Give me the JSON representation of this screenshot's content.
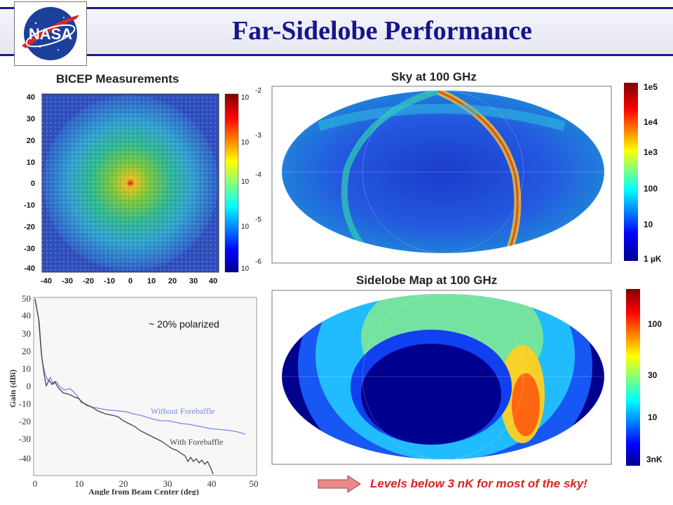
{
  "slide": {
    "title": "Far-Sidelobe Performance"
  },
  "logo": {
    "text": "NASA"
  },
  "bicep": {
    "title": "BICEP Measurements",
    "y_ticks": [
      "40",
      "30",
      "20",
      "10",
      "0",
      "-10",
      "-20",
      "-30",
      "-40"
    ],
    "x_ticks": [
      "-40",
      "-30",
      "-20",
      "-10",
      "0",
      "10",
      "20",
      "30",
      "40"
    ],
    "colorbar_ticks": [
      "-2",
      "-3",
      "-4",
      "-5",
      "-6"
    ],
    "colorbar_base": "10"
  },
  "gain_plot": {
    "ylabel": "Gain (dBi)",
    "xlabel": "Angle from Beam Center (deg)",
    "y_ticks": [
      "50",
      "40",
      "30",
      "20",
      "10",
      "0",
      "-10",
      "-20",
      "-30",
      "-40"
    ],
    "x_ticks": [
      "0",
      "10",
      "20",
      "30",
      "40",
      "50"
    ],
    "annotation": "~ 20% polarized",
    "label_without": "Without Forebaffle",
    "label_with": "With Forebaffle",
    "color_without": "#7b86e6",
    "color_with": "#444444"
  },
  "sky_map": {
    "title": "Sky at 100 GHz",
    "colorbar_ticks": [
      "1e5",
      "1e4",
      "1e3",
      "100",
      "10",
      "1 µK"
    ]
  },
  "sidelobe_map": {
    "title": "Sidelobe Map at 100 GHz",
    "colorbar_ticks": [
      "100",
      "30",
      "10",
      "3nK"
    ]
  },
  "footer": {
    "message": "Levels below 3 nK for most of the sky!",
    "arrow_color": "#e88a8a"
  }
}
